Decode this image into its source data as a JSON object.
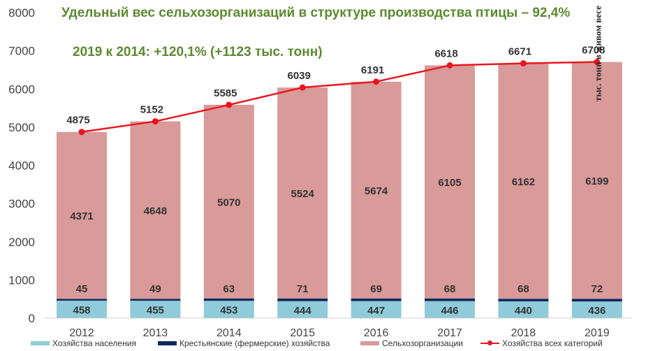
{
  "colors": {
    "households": "#8fcbd9",
    "farms": "#102a5c",
    "agri_orgs": "#d99a9a",
    "total_line": "#e8171f",
    "title": "#5b8a2e"
  },
  "chart_data": {
    "type": "bar",
    "stacked": true,
    "title": "Удельный вес сельхозорганизаций в структуре производства птицы – 92,4%",
    "subtitle": "2019 к 2014: +120,1% (+1123 тыс. тонн)",
    "ylabel": "тыс. тонн в живом весе",
    "ylim": [
      0,
      8000
    ],
    "yticks": [
      "0",
      "1000",
      "2000",
      "3000",
      "4000",
      "5000",
      "6000",
      "7000",
      "8000"
    ],
    "grid": false,
    "legend_position": "bottom",
    "categories": [
      "2012",
      "2013",
      "2014",
      "2015",
      "2016",
      "2017",
      "2018",
      "2019"
    ],
    "series": [
      {
        "name": "Хозяйства населения",
        "kind": "bar",
        "values": [
          458,
          455,
          453,
          444,
          447,
          446,
          440,
          436
        ]
      },
      {
        "name": "Крестьянские (фермерские) хозяйства",
        "kind": "bar",
        "values": [
          45,
          49,
          63,
          71,
          69,
          68,
          68,
          72
        ]
      },
      {
        "name": "Сельхозорганизации",
        "kind": "bar",
        "values": [
          4371,
          4648,
          5070,
          5524,
          5674,
          6105,
          6162,
          6199
        ]
      },
      {
        "name": "Хозяйства всех категорий",
        "kind": "line",
        "values": [
          4875,
          5152,
          5585,
          6039,
          6191,
          6618,
          6671,
          6708
        ]
      }
    ]
  }
}
